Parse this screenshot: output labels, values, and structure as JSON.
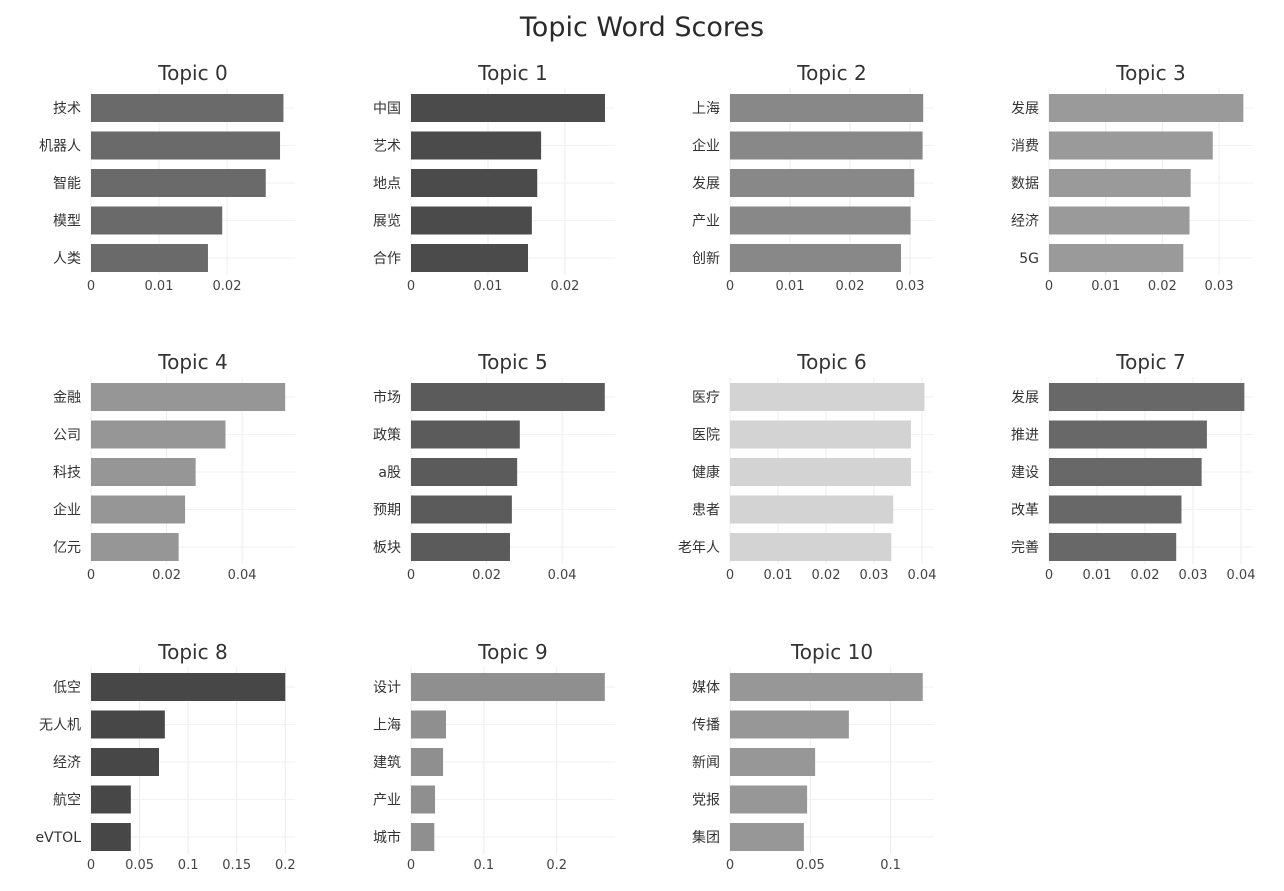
{
  "title": "Topic Word Scores",
  "chart_data": [
    {
      "type": "bar",
      "orientation": "horizontal",
      "title": "Topic 0",
      "color": "#6a6a6a",
      "categories": [
        "技术",
        "机器人",
        "智能",
        "模型",
        "人类"
      ],
      "values": [
        0.0283,
        0.0278,
        0.0257,
        0.0193,
        0.0172
      ],
      "xlim": [
        0,
        0.03
      ],
      "ticks": [
        0,
        0.01,
        0.02
      ],
      "tick_labels": [
        "0",
        "0.01",
        "0.02"
      ]
    },
    {
      "type": "bar",
      "orientation": "horizontal",
      "title": "Topic 1",
      "color": "#4b4b4b",
      "categories": [
        "中国",
        "艺术",
        "地点",
        "展览",
        "合作"
      ],
      "values": [
        0.0252,
        0.0169,
        0.0164,
        0.0157,
        0.0152
      ],
      "xlim": [
        0,
        0.0265
      ],
      "ticks": [
        0,
        0.01,
        0.02
      ],
      "tick_labels": [
        "0",
        "0.01",
        "0.02"
      ]
    },
    {
      "type": "bar",
      "orientation": "horizontal",
      "title": "Topic 2",
      "color": "#888888",
      "categories": [
        "上海",
        "企业",
        "发展",
        "产业",
        "创新"
      ],
      "values": [
        0.0322,
        0.0321,
        0.0307,
        0.0301,
        0.0285
      ],
      "xlim": [
        0,
        0.034
      ],
      "ticks": [
        0,
        0.01,
        0.02,
        0.03
      ],
      "tick_labels": [
        "0",
        "0.01",
        "0.02",
        "0.03"
      ]
    },
    {
      "type": "bar",
      "orientation": "horizontal",
      "title": "Topic 3",
      "color": "#9a9a9a",
      "categories": [
        "发展",
        "消费",
        "数据",
        "经济",
        "5G"
      ],
      "values": [
        0.0343,
        0.0289,
        0.025,
        0.0248,
        0.0237
      ],
      "xlim": [
        0,
        0.036
      ],
      "ticks": [
        0,
        0.01,
        0.02,
        0.03
      ],
      "tick_labels": [
        "0",
        "0.01",
        "0.02",
        "0.03"
      ]
    },
    {
      "type": "bar",
      "orientation": "horizontal",
      "title": "Topic 4",
      "color": "#969696",
      "categories": [
        "金融",
        "公司",
        "科技",
        "企业",
        "亿元"
      ],
      "values": [
        0.0514,
        0.0356,
        0.0277,
        0.0249,
        0.0232
      ],
      "xlim": [
        0,
        0.054
      ],
      "ticks": [
        0,
        0.02,
        0.04
      ],
      "tick_labels": [
        "0",
        "0.02",
        "0.04"
      ]
    },
    {
      "type": "bar",
      "orientation": "horizontal",
      "title": "Topic 5",
      "color": "#5b5b5b",
      "categories": [
        "市场",
        "政策",
        "a股",
        "预期",
        "板块"
      ],
      "values": [
        0.0513,
        0.0288,
        0.0281,
        0.0267,
        0.0262
      ],
      "xlim": [
        0,
        0.054
      ],
      "ticks": [
        0,
        0.02,
        0.04
      ],
      "tick_labels": [
        "0",
        "0.02",
        "0.04"
      ]
    },
    {
      "type": "bar",
      "orientation": "horizontal",
      "title": "Topic 6",
      "color": "#d3d3d3",
      "categories": [
        "医疗",
        "医院",
        "健康",
        "患者",
        "老年人"
      ],
      "values": [
        0.0405,
        0.0377,
        0.0377,
        0.034,
        0.0336
      ],
      "xlim": [
        0,
        0.0425
      ],
      "ticks": [
        0,
        0.01,
        0.02,
        0.03,
        0.04
      ],
      "tick_labels": [
        "0",
        "0.01",
        "0.02",
        "0.03",
        "0.04"
      ]
    },
    {
      "type": "bar",
      "orientation": "horizontal",
      "title": "Topic 7",
      "color": "#686868",
      "categories": [
        "发展",
        "推进",
        "建设",
        "改革",
        "完善"
      ],
      "values": [
        0.0407,
        0.0329,
        0.0318,
        0.0276,
        0.0265
      ],
      "xlim": [
        0,
        0.0425
      ],
      "ticks": [
        0,
        0.01,
        0.02,
        0.03,
        0.04
      ],
      "tick_labels": [
        "0",
        "0.01",
        "0.02",
        "0.03",
        "0.04"
      ]
    },
    {
      "type": "bar",
      "orientation": "horizontal",
      "title": "Topic 8",
      "color": "#474747",
      "categories": [
        "低空",
        "无人机",
        "经济",
        "航空",
        "eVTOL"
      ],
      "values": [
        0.2,
        0.076,
        0.07,
        0.041,
        0.041
      ],
      "xlim": [
        0,
        0.21
      ],
      "ticks": [
        0,
        0.05,
        0.1,
        0.15,
        0.2
      ],
      "tick_labels": [
        "0",
        "0.05",
        "0.1",
        "0.15",
        "0.2"
      ]
    },
    {
      "type": "bar",
      "orientation": "horizontal",
      "title": "Topic 9",
      "color": "#8f8f8f",
      "categories": [
        "设计",
        "上海",
        "建筑",
        "产业",
        "城市"
      ],
      "values": [
        0.266,
        0.048,
        0.044,
        0.033,
        0.032
      ],
      "xlim": [
        0,
        0.28
      ],
      "ticks": [
        0,
        0.1,
        0.2
      ],
      "tick_labels": [
        "0",
        "0.1",
        "0.2"
      ]
    },
    {
      "type": "bar",
      "orientation": "horizontal",
      "title": "Topic 10",
      "color": "#979797",
      "categories": [
        "媒体",
        "传播",
        "新闻",
        "党报",
        "集团"
      ],
      "values": [
        0.12,
        0.074,
        0.053,
        0.048,
        0.046
      ],
      "xlim": [
        0,
        0.127
      ],
      "ticks": [
        0,
        0.05,
        0.1
      ],
      "tick_labels": [
        "0",
        "0.05",
        "0.1"
      ]
    }
  ]
}
